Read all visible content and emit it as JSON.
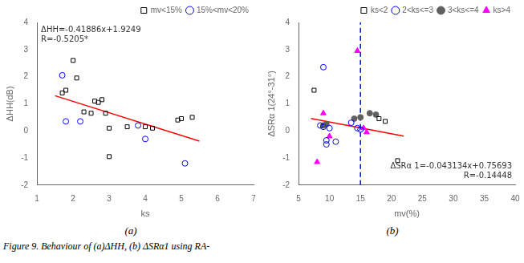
{
  "chart_data": [
    {
      "type": "scatter",
      "subtitle": "(a)",
      "xlabel": "ks",
      "ylabel": "ΔHH(dB)",
      "xlim": [
        1,
        7
      ],
      "ylim": [
        -2,
        4
      ],
      "xticks": [
        1,
        2,
        3,
        4,
        5,
        6,
        7
      ],
      "yticks": [
        -2,
        -1,
        0,
        1,
        2,
        3,
        4
      ],
      "grid": false,
      "legend": "upper right",
      "annotations": [
        "ΔHH=-0.41886x+1.9249",
        "R=-0.5205*"
      ],
      "series": [
        {
          "name": "mv<15%",
          "color": "black",
          "marker": "open_square",
          "x": [
            1.7,
            1.8,
            2.0,
            2.1,
            2.3,
            2.5,
            2.6,
            2.7,
            2.8,
            2.9,
            3.0,
            3.0,
            3.5,
            4.0,
            4.2,
            4.9,
            5.0,
            5.3
          ],
          "values": [
            1.4,
            1.5,
            2.6,
            1.95,
            0.7,
            0.65,
            1.1,
            1.05,
            1.15,
            0.65,
            0.1,
            -0.95,
            0.15,
            0.15,
            0.1,
            0.4,
            0.45,
            0.5
          ]
        },
        {
          "name": "15%<mv<20%",
          "color": "blue",
          "marker": "open_circle",
          "x": [
            1.7,
            1.8,
            2.2,
            3.8,
            4.0,
            5.1
          ],
          "values": [
            2.05,
            0.35,
            0.35,
            0.2,
            -0.3,
            -1.2
          ]
        },
        {
          "type": "line",
          "color": "red",
          "line_style": "solid",
          "x": [
            1.5,
            5.5
          ],
          "values": [
            1.29661,
            -0.37883
          ]
        }
      ]
    },
    {
      "type": "scatter",
      "subtitle": "(b)",
      "xlabel": "mv(%)",
      "ylabel": "ΔSRα 1(24°-31°)",
      "xlim": [
        5,
        40
      ],
      "ylim": [
        -2,
        4
      ],
      "xticks": [
        5,
        10,
        15,
        20,
        25,
        30,
        35,
        40
      ],
      "yticks": [
        -2,
        -1,
        0,
        1,
        2,
        3,
        4
      ],
      "grid": false,
      "legend": "upper right",
      "annotations": [
        "ΔSRα 1=-0.043134x+0.75693",
        "R=-0.14448"
      ],
      "series": [
        {
          "type": "line",
          "color": "blue",
          "line_style": "dashed",
          "x": [
            15,
            15
          ],
          "values": [
            -2,
            4
          ]
        },
        {
          "name": "ks<2",
          "color": "black",
          "marker": "open_square",
          "x": [
            7.5,
            18.0,
            19.0,
            21.0
          ],
          "values": [
            1.5,
            0.45,
            0.35,
            -1.1
          ]
        },
        {
          "name": "2<ks<=3",
          "color": "blue",
          "marker": "open_circle",
          "x": [
            8.5,
            9.0,
            9.0,
            9.5,
            10.0,
            11.0,
            13.5,
            14.5,
            15.0,
            9.5
          ],
          "values": [
            0.2,
            0.15,
            2.35,
            -0.35,
            0.1,
            -0.4,
            0.3,
            0.1,
            0.05,
            -0.5
          ]
        },
        {
          "name": "3<ks<=4",
          "color": "#606060",
          "marker": "filled_circle",
          "x": [
            9.0,
            9.5,
            14.0,
            15.0,
            16.5,
            17.5
          ],
          "values": [
            0.2,
            0.25,
            0.45,
            0.5,
            0.65,
            0.6
          ]
        },
        {
          "name": "ks>4",
          "color": "magenta",
          "marker": "filled_triangle",
          "x": [
            8.0,
            9.0,
            10.0,
            14.5,
            15.5,
            16.0
          ],
          "values": [
            -1.15,
            0.65,
            -0.2,
            2.95,
            0.1,
            -0.05
          ]
        },
        {
          "type": "line",
          "color": "red",
          "line_style": "solid",
          "x": [
            7,
            22
          ],
          "values": [
            0.454992,
            -0.192018
          ]
        }
      ]
    }
  ],
  "caption": "Figure 9. Behaviour of (a)ΔHH, (b) ΔSRα1 using RA-"
}
